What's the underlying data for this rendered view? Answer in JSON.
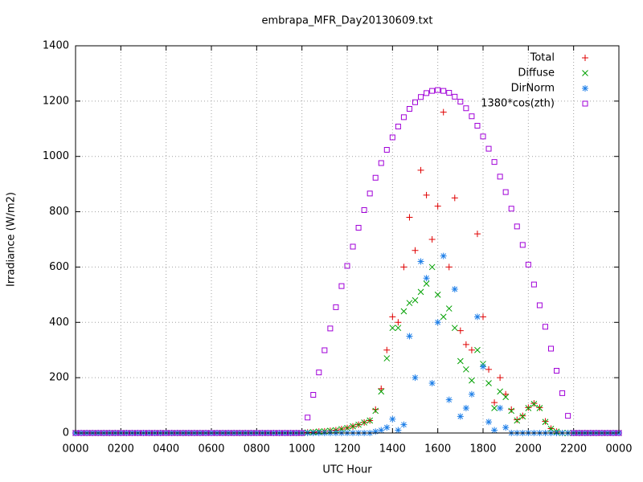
{
  "chart_data": {
    "type": "scatter",
    "title": "embrapa_MFR_Day20130609.txt",
    "xlabel": "UTC Hour",
    "ylabel": "Irradiance (W/m2)",
    "xlim": [
      0,
      24
    ],
    "xticks": [
      {
        "value": 0,
        "label": "0000"
      },
      {
        "value": 2,
        "label": "0200"
      },
      {
        "value": 4,
        "label": "0400"
      },
      {
        "value": 6,
        "label": "0600"
      },
      {
        "value": 8,
        "label": "0800"
      },
      {
        "value": 10,
        "label": "1000"
      },
      {
        "value": 12,
        "label": "1200"
      },
      {
        "value": 14,
        "label": "1400"
      },
      {
        "value": 16,
        "label": "1600"
      },
      {
        "value": 18,
        "label": "1800"
      },
      {
        "value": 20,
        "label": "2000"
      },
      {
        "value": 22,
        "label": "2200"
      },
      {
        "value": 24,
        "label": "0000"
      }
    ],
    "ylim": [
      0,
      1400
    ],
    "yticks": [
      0,
      200,
      400,
      600,
      800,
      1000,
      1200,
      1400
    ],
    "grid": true,
    "legend": "upper right",
    "x": [
      0,
      0.25,
      0.5,
      0.75,
      1,
      1.25,
      1.5,
      1.75,
      2,
      2.25,
      2.5,
      2.75,
      3,
      3.25,
      3.5,
      3.75,
      4,
      4.25,
      4.5,
      4.75,
      5,
      5.25,
      5.5,
      5.75,
      6,
      6.25,
      6.5,
      6.75,
      7,
      7.25,
      7.5,
      7.75,
      8,
      8.25,
      8.5,
      8.75,
      9,
      9.25,
      9.5,
      9.75,
      10,
      10.25,
      10.5,
      10.75,
      11,
      11.25,
      11.5,
      11.75,
      12,
      12.25,
      12.5,
      12.75,
      13,
      13.25,
      13.5,
      13.75,
      14,
      14.25,
      14.5,
      14.75,
      15,
      15.25,
      15.5,
      15.75,
      16,
      16.25,
      16.5,
      16.75,
      17,
      17.25,
      17.5,
      17.75,
      18,
      18.25,
      18.5,
      18.75,
      19,
      19.25,
      19.5,
      19.75,
      20,
      20.25,
      20.5,
      20.75,
      21,
      21.25,
      21.5,
      21.75,
      22,
      22.25,
      22.5,
      22.75,
      23,
      23.25,
      23.5,
      23.75,
      24
    ],
    "series": [
      {
        "name": "Total",
        "color": "#e00000",
        "marker": "plus",
        "values": [
          0,
          0,
          0,
          0,
          0,
          0,
          0,
          0,
          0,
          0,
          0,
          0,
          0,
          0,
          0,
          0,
          0,
          0,
          0,
          0,
          0,
          0,
          0,
          0,
          0,
          0,
          0,
          0,
          0,
          0,
          0,
          0,
          0,
          0,
          0,
          0,
          0,
          0,
          0,
          0,
          0,
          2,
          3,
          5,
          6,
          8,
          10,
          14,
          18,
          24,
          30,
          38,
          45,
          85,
          160,
          300,
          420,
          400,
          600,
          780,
          660,
          950,
          860,
          700,
          820,
          1160,
          600,
          850,
          370,
          320,
          300,
          720,
          420,
          230,
          110,
          200,
          140,
          85,
          48,
          62,
          92,
          107,
          92,
          42,
          16,
          5,
          0,
          0,
          0,
          0,
          0,
          0,
          0,
          0,
          0,
          0,
          0
        ]
      },
      {
        "name": "Diffuse",
        "color": "#00a000",
        "marker": "cross",
        "values": [
          0,
          0,
          0,
          0,
          0,
          0,
          0,
          0,
          0,
          0,
          0,
          0,
          0,
          0,
          0,
          0,
          0,
          0,
          0,
          0,
          0,
          0,
          0,
          0,
          0,
          0,
          0,
          0,
          0,
          0,
          0,
          0,
          0,
          0,
          0,
          0,
          0,
          0,
          0,
          0,
          0,
          2,
          3,
          5,
          6,
          8,
          10,
          14,
          18,
          24,
          30,
          38,
          45,
          80,
          150,
          270,
          380,
          380,
          440,
          470,
          480,
          510,
          540,
          600,
          500,
          420,
          450,
          380,
          260,
          230,
          190,
          300,
          250,
          180,
          90,
          150,
          130,
          80,
          45,
          60,
          90,
          105,
          90,
          40,
          15,
          5,
          0,
          0,
          0,
          0,
          0,
          0,
          0,
          0,
          0,
          0,
          0
        ]
      },
      {
        "name": "DirNorm",
        "color": "#1e7fe8",
        "marker": "star",
        "values": [
          0,
          0,
          0,
          0,
          0,
          0,
          0,
          0,
          0,
          0,
          0,
          0,
          0,
          0,
          0,
          0,
          0,
          0,
          0,
          0,
          0,
          0,
          0,
          0,
          0,
          0,
          0,
          0,
          0,
          0,
          0,
          0,
          0,
          0,
          0,
          0,
          0,
          0,
          0,
          0,
          0,
          0,
          0,
          0,
          0,
          0,
          0,
          0,
          0,
          0,
          0,
          0,
          0,
          5,
          10,
          20,
          50,
          10,
          30,
          350,
          200,
          620,
          560,
          180,
          400,
          640,
          120,
          520,
          60,
          90,
          140,
          420,
          240,
          40,
          10,
          90,
          20,
          0,
          0,
          0,
          0,
          0,
          0,
          0,
          0,
          0,
          0,
          0,
          0,
          0,
          0,
          0,
          0,
          0,
          0,
          0,
          0
        ]
      },
      {
        "name": "1380*cos(zth)",
        "color": "#a000d8",
        "marker": "square",
        "values": [
          0,
          0,
          0,
          0,
          0,
          0,
          0,
          0,
          0,
          0,
          0,
          0,
          0,
          0,
          0,
          0,
          0,
          0,
          0,
          0,
          0,
          0,
          0,
          0,
          0,
          0,
          0,
          0,
          0,
          0,
          0,
          0,
          0,
          0,
          0,
          0,
          0,
          0,
          0,
          0,
          0,
          56,
          138,
          219,
          299,
          378,
          455,
          531,
          604,
          674,
          742,
          806,
          866,
          923,
          976,
          1024,
          1069,
          1108,
          1142,
          1172,
          1196,
          1215,
          1229,
          1237,
          1240,
          1237,
          1230,
          1216,
          1198,
          1174,
          1145,
          1111,
          1072,
          1028,
          980,
          927,
          871,
          811,
          747,
          680,
          609,
          537,
          462,
          384,
          305,
          225,
          144,
          62,
          0,
          0,
          0,
          0,
          0,
          0,
          0,
          0,
          0
        ]
      }
    ]
  }
}
